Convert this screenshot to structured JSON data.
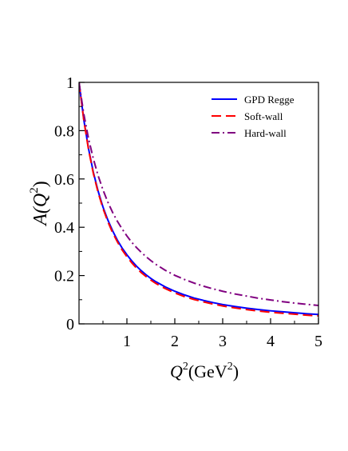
{
  "chart_data": {
    "type": "line",
    "xlabel": {
      "base": "Q",
      "sup": "2",
      "unit_open": "(GeV",
      "unit_sup": "2",
      "unit_close": ")"
    },
    "ylabel": {
      "prefix": "A(",
      "var": "Q",
      "sup": "2",
      "suffix": ")"
    },
    "xlim": [
      0,
      5
    ],
    "ylim": [
      0,
      1
    ],
    "xticks": [
      "1",
      "2",
      "3",
      "4",
      "5"
    ],
    "yticks": [
      "0",
      "0.2",
      "0.4",
      "0.6",
      "0.8",
      "1"
    ],
    "grid": false,
    "legend_position": "top-right",
    "series": [
      {
        "name": "GPD Regge",
        "color": "#0000ff",
        "dash": "solid",
        "x": [
          0,
          0.1,
          0.2,
          0.3,
          0.4,
          0.5,
          0.6,
          0.7,
          0.8,
          0.9,
          1.0,
          1.1,
          1.2,
          1.3,
          1.4,
          1.5,
          1.6,
          1.8,
          2.0,
          2.2,
          2.4,
          2.6,
          2.8,
          3.0,
          3.25,
          3.5,
          3.75,
          4.0,
          4.25,
          4.5,
          4.75,
          5.0
        ],
        "y": [
          1.0,
          0.845,
          0.724,
          0.627,
          0.549,
          0.484,
          0.431,
          0.386,
          0.347,
          0.314,
          0.286,
          0.261,
          0.239,
          0.22,
          0.203,
          0.188,
          0.175,
          0.153,
          0.135,
          0.12,
          0.107,
          0.097,
          0.088,
          0.08,
          0.072,
          0.065,
          0.059,
          0.054,
          0.05,
          0.046,
          0.042,
          0.039
        ]
      },
      {
        "name": "Soft-wall",
        "color": "#ff0000",
        "dash": "dashed",
        "x": [
          0,
          0.1,
          0.2,
          0.3,
          0.4,
          0.5,
          0.6,
          0.7,
          0.8,
          0.9,
          1.0,
          1.1,
          1.2,
          1.3,
          1.4,
          1.5,
          1.6,
          1.8,
          2.0,
          2.2,
          2.4,
          2.6,
          2.8,
          3.0,
          3.25,
          3.5,
          3.75,
          4.0,
          4.25,
          4.5,
          4.75,
          5.0
        ],
        "y": [
          1.0,
          0.843,
          0.72,
          0.622,
          0.543,
          0.478,
          0.424,
          0.378,
          0.34,
          0.306,
          0.278,
          0.253,
          0.231,
          0.212,
          0.196,
          0.181,
          0.168,
          0.146,
          0.128,
          0.113,
          0.101,
          0.091,
          0.082,
          0.074,
          0.066,
          0.059,
          0.053,
          0.048,
          0.044,
          0.04,
          0.036,
          0.033
        ]
      },
      {
        "name": "Hard-wall",
        "color": "#800080",
        "dash": "dashdot",
        "x": [
          0,
          0.1,
          0.2,
          0.3,
          0.4,
          0.5,
          0.6,
          0.7,
          0.8,
          0.9,
          1.0,
          1.1,
          1.2,
          1.3,
          1.4,
          1.5,
          1.6,
          1.8,
          2.0,
          2.2,
          2.4,
          2.6,
          2.8,
          3.0,
          3.25,
          3.5,
          3.75,
          4.0,
          4.25,
          4.5,
          4.75,
          5.0
        ],
        "y": [
          1.0,
          0.869,
          0.766,
          0.683,
          0.613,
          0.555,
          0.505,
          0.462,
          0.425,
          0.393,
          0.364,
          0.338,
          0.316,
          0.296,
          0.278,
          0.262,
          0.247,
          0.222,
          0.201,
          0.184,
          0.169,
          0.156,
          0.145,
          0.135,
          0.124,
          0.115,
          0.106,
          0.099,
          0.092,
          0.086,
          0.081,
          0.076
        ]
      }
    ]
  }
}
